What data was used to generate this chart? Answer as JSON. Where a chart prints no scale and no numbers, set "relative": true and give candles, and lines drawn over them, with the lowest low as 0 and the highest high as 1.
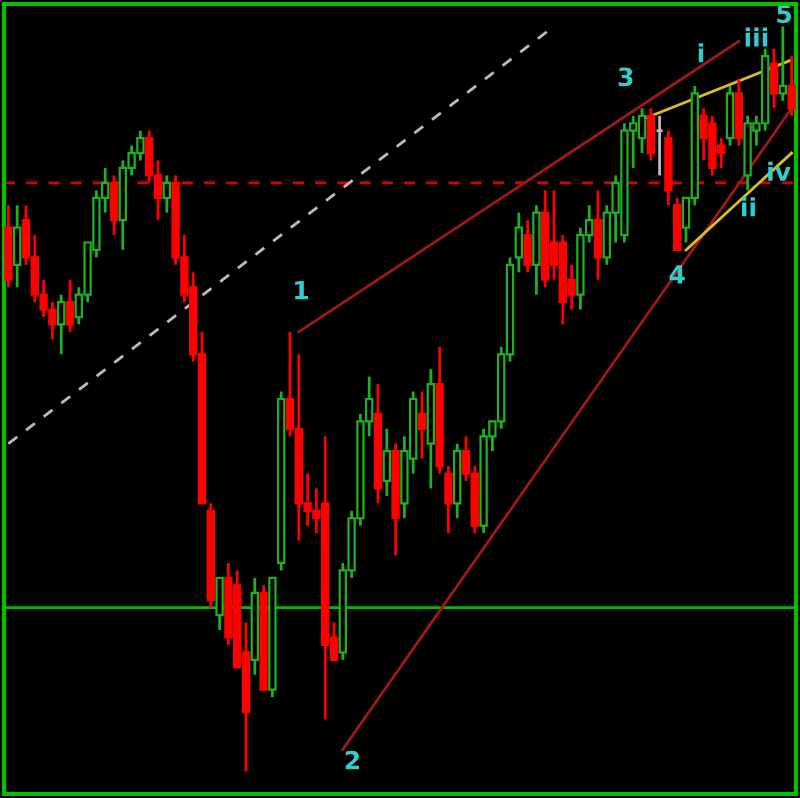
{
  "chart_data": {
    "type": "candlestick",
    "relative": true,
    "categories": [
      null,
      null,
      null,
      null,
      null,
      null,
      null,
      null,
      null,
      null,
      null,
      null,
      null,
      null,
      null,
      null,
      null,
      null,
      null,
      null,
      null,
      null,
      null,
      null,
      null,
      null,
      null,
      null,
      null,
      null,
      null,
      null,
      null,
      null,
      null,
      null,
      null,
      null,
      null,
      null,
      null,
      null,
      null,
      null,
      null,
      null,
      null,
      null,
      null,
      null,
      null,
      null,
      null,
      null,
      null,
      null,
      null,
      null,
      null,
      null,
      null,
      null,
      null,
      null,
      null,
      null,
      null,
      null,
      null,
      null,
      null,
      null,
      null,
      null,
      null,
      null,
      null,
      null,
      null,
      null,
      null,
      null,
      null,
      null,
      null,
      null,
      null,
      null,
      null,
      null
    ],
    "ohlc": [
      [
        0.73,
        0.76,
        0.65,
        0.66
      ],
      [
        0.68,
        0.76,
        0.65,
        0.73
      ],
      [
        0.74,
        0.76,
        0.68,
        0.69
      ],
      [
        0.69,
        0.72,
        0.63,
        0.64
      ],
      [
        0.64,
        0.66,
        0.61,
        0.62
      ],
      [
        0.62,
        0.63,
        0.58,
        0.6
      ],
      [
        0.6,
        0.64,
        0.56,
        0.63
      ],
      [
        0.63,
        0.66,
        0.59,
        0.6
      ],
      [
        0.61,
        0.65,
        0.6,
        0.64
      ],
      [
        0.64,
        0.71,
        0.63,
        0.71
      ],
      [
        0.7,
        0.78,
        0.69,
        0.77
      ],
      [
        0.77,
        0.81,
        0.75,
        0.79
      ],
      [
        0.79,
        0.8,
        0.72,
        0.74
      ],
      [
        0.74,
        0.82,
        0.7,
        0.81
      ],
      [
        0.81,
        0.84,
        0.8,
        0.83
      ],
      [
        0.83,
        0.86,
        0.82,
        0.85
      ],
      [
        0.85,
        0.86,
        0.79,
        0.8
      ],
      [
        0.8,
        0.82,
        0.74,
        0.77
      ],
      [
        0.77,
        0.8,
        0.75,
        0.79
      ],
      [
        0.79,
        0.8,
        0.68,
        0.69
      ],
      [
        0.69,
        0.72,
        0.63,
        0.64
      ],
      [
        0.65,
        0.67,
        0.55,
        0.56
      ],
      [
        0.56,
        0.59,
        0.36,
        0.36
      ],
      [
        0.35,
        0.36,
        0.22,
        0.23
      ],
      [
        0.21,
        0.26,
        0.19,
        0.26
      ],
      [
        0.26,
        0.28,
        0.17,
        0.18
      ],
      [
        0.25,
        0.27,
        0.14,
        0.14
      ],
      [
        0.16,
        0.2,
        0.0,
        0.08
      ],
      [
        0.15,
        0.26,
        0.13,
        0.24
      ],
      [
        0.24,
        0.25,
        0.11,
        0.11
      ],
      [
        0.11,
        0.26,
        0.1,
        0.26
      ],
      [
        0.28,
        0.51,
        0.27,
        0.5
      ],
      [
        0.5,
        0.59,
        0.45,
        0.46
      ],
      [
        0.46,
        0.56,
        0.31,
        0.36
      ],
      [
        0.36,
        0.4,
        0.33,
        0.35
      ],
      [
        0.35,
        0.38,
        0.32,
        0.34
      ],
      [
        0.36,
        0.45,
        0.07,
        0.17
      ],
      [
        0.18,
        0.2,
        0.15,
        0.15
      ],
      [
        0.16,
        0.28,
        0.15,
        0.27
      ],
      [
        0.27,
        0.35,
        0.26,
        0.34
      ],
      [
        0.34,
        0.48,
        0.33,
        0.47
      ],
      [
        0.47,
        0.53,
        0.45,
        0.5
      ],
      [
        0.48,
        0.52,
        0.36,
        0.38
      ],
      [
        0.39,
        0.46,
        0.37,
        0.43
      ],
      [
        0.43,
        0.44,
        0.29,
        0.34
      ],
      [
        0.36,
        0.45,
        0.34,
        0.43
      ],
      [
        0.42,
        0.51,
        0.4,
        0.5
      ],
      [
        0.48,
        0.51,
        0.42,
        0.46
      ],
      [
        0.44,
        0.54,
        0.38,
        0.52
      ],
      [
        0.52,
        0.57,
        0.4,
        0.41
      ],
      [
        0.4,
        0.41,
        0.32,
        0.36
      ],
      [
        0.36,
        0.44,
        0.34,
        0.43
      ],
      [
        0.43,
        0.45,
        0.39,
        0.4
      ],
      [
        0.4,
        0.41,
        0.32,
        0.33
      ],
      [
        0.33,
        0.46,
        0.32,
        0.45
      ],
      [
        0.45,
        0.47,
        0.43,
        0.47
      ],
      [
        0.47,
        0.57,
        0.46,
        0.56
      ],
      [
        0.56,
        0.69,
        0.55,
        0.68
      ],
      [
        0.69,
        0.75,
        0.67,
        0.73
      ],
      [
        0.72,
        0.74,
        0.67,
        0.68
      ],
      [
        0.68,
        0.76,
        0.64,
        0.75
      ],
      [
        0.75,
        0.78,
        0.65,
        0.66
      ],
      [
        0.71,
        0.78,
        0.66,
        0.68
      ],
      [
        0.71,
        0.72,
        0.6,
        0.63
      ],
      [
        0.66,
        0.68,
        0.62,
        0.64
      ],
      [
        0.64,
        0.73,
        0.62,
        0.72
      ],
      [
        0.72,
        0.76,
        0.71,
        0.74
      ],
      [
        0.74,
        0.78,
        0.66,
        0.69
      ],
      [
        0.69,
        0.76,
        0.68,
        0.75
      ],
      [
        0.75,
        0.8,
        0.71,
        0.79
      ],
      [
        0.72,
        0.87,
        0.71,
        0.86
      ],
      [
        0.86,
        0.88,
        0.81,
        0.87
      ],
      [
        0.85,
        0.89,
        0.83,
        0.88
      ],
      [
        0.88,
        0.89,
        0.82,
        0.83
      ],
      [
        0.86,
        0.88,
        0.8,
        0.86
      ],
      [
        0.85,
        0.86,
        0.76,
        0.78
      ],
      [
        0.76,
        0.77,
        0.7,
        0.7
      ],
      [
        0.73,
        0.77,
        0.71,
        0.77
      ],
      [
        0.77,
        0.92,
        0.76,
        0.91
      ],
      [
        0.88,
        0.89,
        0.82,
        0.85
      ],
      [
        0.87,
        0.88,
        0.8,
        0.81
      ],
      [
        0.84,
        0.85,
        0.81,
        0.83
      ],
      [
        0.85,
        0.92,
        0.84,
        0.91
      ],
      [
        0.91,
        0.93,
        0.84,
        0.85
      ],
      [
        0.8,
        0.88,
        0.78,
        0.87
      ],
      [
        0.86,
        0.88,
        0.84,
        0.87
      ],
      [
        0.87,
        0.97,
        0.86,
        0.96
      ],
      [
        0.95,
        0.97,
        0.89,
        0.91
      ],
      [
        0.91,
        1.0,
        0.9,
        0.92
      ],
      [
        0.92,
        0.96,
        0.88,
        0.89
      ]
    ],
    "colors": [
      "#ff0000",
      "#22b022",
      "#ff0000",
      "#ff0000",
      "#ff0000",
      "#ff0000",
      "#22b022",
      "#ff0000",
      "#22b022",
      "#22b022",
      "#22b022",
      "#22b022",
      "#ff0000",
      "#22b022",
      "#22b022",
      "#22b022",
      "#ff0000",
      "#ff0000",
      "#22b022",
      "#ff0000",
      "#ff0000",
      "#ff0000",
      "#ff0000",
      "#ff0000",
      "#22b022",
      "#ff0000",
      "#ff0000",
      "#ff0000",
      "#22b022",
      "#ff0000",
      "#22b022",
      "#22b022",
      "#ff0000",
      "#ff0000",
      "#ff0000",
      "#ff0000",
      "#ff0000",
      "#ff0000",
      "#22b022",
      "#22b022",
      "#22b022",
      "#22b022",
      "#ff0000",
      "#22b022",
      "#ff0000",
      "#22b022",
      "#22b022",
      "#ff0000",
      "#22b022",
      "#ff0000",
      "#ff0000",
      "#22b022",
      "#ff0000",
      "#ff0000",
      "#22b022",
      "#22b022",
      "#22b022",
      "#22b022",
      "#22b022",
      "#ff0000",
      "#22b022",
      "#ff0000",
      "#ff0000",
      "#ff0000",
      "#ff0000",
      "#22b022",
      "#22b022",
      "#ff0000",
      "#22b022",
      "#22b022",
      "#22b022",
      "#22b022",
      "#22b022",
      "#ff0000",
      "#bbbbbb",
      "#ff0000",
      "#ff0000",
      "#22b022",
      "#22b022",
      "#ff0000",
      "#ff0000",
      "#ff0000",
      "#22b022",
      "#ff0000",
      "#22b022",
      "#22b022",
      "#22b022",
      "#ff0000",
      "#22b022",
      "#ff0000"
    ],
    "series": [
      {
        "type": "line",
        "color": "#a01818",
        "line_style": "solid",
        "values": [
          null,
          null,
          null,
          null,
          null,
          null,
          null,
          null,
          null,
          null,
          null,
          null,
          null,
          null,
          null,
          null,
          null,
          null,
          null,
          null,
          null,
          null,
          null,
          null,
          null,
          null,
          null,
          null,
          null,
          null,
          null,
          null,
          null,
          0.59,
          null,
          null,
          null,
          null,
          null,
          null,
          null,
          null,
          null,
          null,
          null,
          null,
          null,
          null,
          null,
          null,
          null,
          null,
          null,
          null,
          null,
          null,
          null,
          null,
          null,
          null,
          null,
          null,
          null,
          null,
          null,
          null,
          null,
          null,
          null,
          null,
          null,
          null,
          null,
          null,
          null,
          null,
          null,
          null,
          null,
          null,
          null,
          null,
          null,
          0.98,
          null,
          null,
          null,
          null,
          null,
          null
        ]
      },
      {
        "type": "line",
        "color": "#a01818",
        "line_style": "solid",
        "values": [
          null,
          null,
          null,
          null,
          null,
          null,
          null,
          null,
          null,
          null,
          null,
          null,
          null,
          null,
          null,
          null,
          null,
          null,
          null,
          null,
          null,
          null,
          null,
          null,
          null,
          null,
          null,
          null,
          null,
          null,
          null,
          null,
          null,
          null,
          null,
          null,
          null,
          null,
          0.03,
          null,
          null,
          null,
          null,
          null,
          null,
          null,
          null,
          null,
          null,
          null,
          null,
          null,
          null,
          null,
          null,
          null,
          null,
          null,
          null,
          null,
          null,
          null,
          null,
          null,
          null,
          null,
          null,
          null,
          null,
          null,
          null,
          null,
          null,
          null,
          null,
          null,
          null,
          null,
          null,
          null,
          null,
          null,
          null,
          null,
          null,
          null,
          null,
          null,
          null,
          0.89
        ]
      },
      {
        "type": "line",
        "color": "#d8c020",
        "line_style": "solid",
        "values": [
          null,
          null,
          null,
          null,
          null,
          null,
          null,
          null,
          null,
          null,
          null,
          null,
          null,
          null,
          null,
          null,
          null,
          null,
          null,
          null,
          null,
          null,
          null,
          null,
          null,
          null,
          null,
          null,
          null,
          null,
          null,
          null,
          null,
          null,
          null,
          null,
          null,
          null,
          null,
          null,
          null,
          null,
          null,
          null,
          null,
          null,
          null,
          null,
          null,
          null,
          null,
          null,
          null,
          null,
          null,
          null,
          null,
          null,
          null,
          null,
          null,
          null,
          null,
          null,
          null,
          null,
          null,
          null,
          null,
          null,
          null,
          null,
          0.875,
          null,
          null,
          null,
          null,
          null,
          null,
          null,
          null,
          null,
          null,
          null,
          null,
          null,
          null,
          null,
          null,
          0.955
        ]
      },
      {
        "type": "line",
        "color": "#d8c020",
        "line_style": "solid",
        "values": [
          null,
          null,
          null,
          null,
          null,
          null,
          null,
          null,
          null,
          null,
          null,
          null,
          null,
          null,
          null,
          null,
          null,
          null,
          null,
          null,
          null,
          null,
          null,
          null,
          null,
          null,
          null,
          null,
          null,
          null,
          null,
          null,
          null,
          null,
          null,
          null,
          null,
          null,
          null,
          null,
          null,
          null,
          null,
          null,
          null,
          null,
          null,
          null,
          null,
          null,
          null,
          null,
          null,
          null,
          null,
          null,
          null,
          null,
          null,
          null,
          null,
          null,
          null,
          null,
          null,
          null,
          null,
          null,
          null,
          null,
          null,
          null,
          null,
          null,
          null,
          null,
          null,
          0.7,
          null,
          null,
          null,
          null,
          null,
          null,
          null,
          null,
          null,
          null,
          null,
          0.83
        ]
      },
      {
        "type": "line",
        "color": "#bbbbbb",
        "line_style": "dashed",
        "values": [
          0.44,
          null,
          null,
          null,
          null,
          null,
          null,
          null,
          null,
          null,
          null,
          null,
          null,
          null,
          null,
          null,
          null,
          null,
          null,
          null,
          null,
          null,
          null,
          null,
          null,
          null,
          null,
          null,
          null,
          null,
          null,
          null,
          null,
          null,
          null,
          null,
          null,
          null,
          null,
          null,
          null,
          null,
          null,
          null,
          null,
          null,
          null,
          null,
          null,
          null,
          null,
          null,
          null,
          null,
          null,
          null,
          null,
          null,
          null,
          null,
          null,
          null,
          1.0,
          null,
          null,
          null,
          null,
          null,
          null,
          null,
          null,
          null,
          null,
          null,
          null,
          null,
          null,
          null,
          null,
          null,
          null,
          null,
          null,
          null,
          null,
          null,
          null,
          null,
          null,
          null
        ]
      }
    ],
    "ref_lines": [
      {
        "axis": "y",
        "value": 0.22,
        "color": "#00c000",
        "line_style": "solid"
      },
      {
        "axis": "y",
        "value": 0.79,
        "color": "#dd0000",
        "line_style": "dashed"
      }
    ],
    "annotations": [
      "1",
      "2",
      "3",
      "4",
      "5",
      "i",
      "ii",
      "iii",
      "iv"
    ]
  }
}
